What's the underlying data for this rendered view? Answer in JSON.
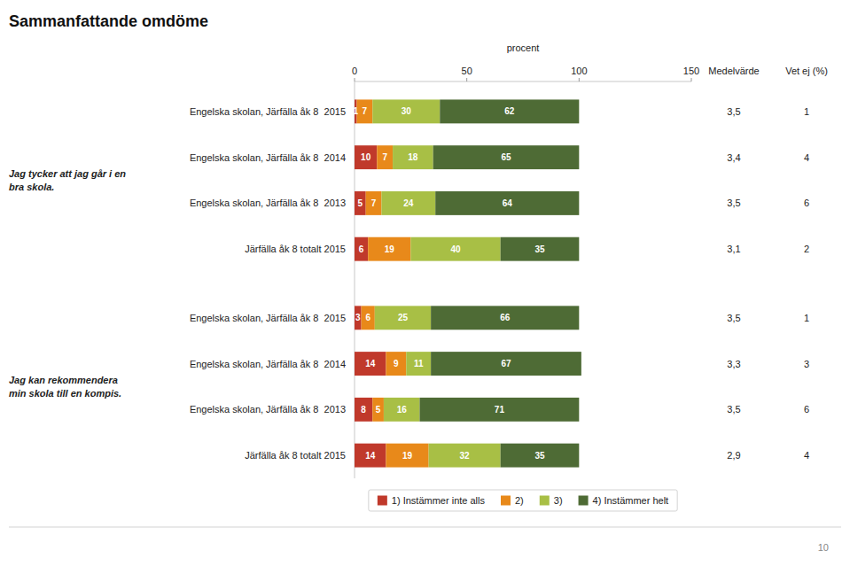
{
  "chart_data": {
    "type": "bar",
    "orientation": "horizontal",
    "stacked": true,
    "data_labels": true,
    "legend": "bottom",
    "title": "Sammanfattande omdöme",
    "x_label": "procent",
    "xlim": [
      0,
      150
    ],
    "xticks": [
      0,
      50,
      100,
      150
    ],
    "categories": [
      "Engelska skolan, Järfälla åk 8  2015",
      "Engelska skolan, Järfälla åk 8  2014",
      "Engelska skolan, Järfälla åk 8  2013",
      "Järfälla åk 8 totalt 2015",
      "Engelska skolan, Järfälla åk 8  2015",
      "Engelska skolan, Järfälla åk 8  2014",
      "Engelska skolan, Järfälla åk 8  2013",
      "Järfälla åk 8 totalt 2015"
    ],
    "groups": [
      {
        "name": "Jag tycker att jag går i en\nbra skola.",
        "count": 4
      },
      {
        "name": "Jag kan rekommendera\nmin skola till en kompis.",
        "count": 4
      }
    ],
    "series": [
      {
        "name": "1) Instämmer inte alls",
        "color": "#c0392b",
        "values": [
          1,
          10,
          5,
          6,
          3,
          14,
          8,
          14
        ]
      },
      {
        "name": "2)",
        "color": "#e8891a",
        "values": [
          7,
          7,
          7,
          19,
          6,
          9,
          5,
          19
        ]
      },
      {
        "name": "3)",
        "color": "#a8bf45",
        "values": [
          30,
          18,
          24,
          40,
          25,
          11,
          16,
          32
        ]
      },
      {
        "name": "4) Instämmer helt",
        "color": "#4e6b35",
        "values": [
          62,
          65,
          64,
          35,
          66,
          67,
          71,
          35
        ]
      }
    ],
    "columns": [
      {
        "name": "Medelvärde",
        "values": [
          3.5,
          3.4,
          3.5,
          3.1,
          3.5,
          3.3,
          3.5,
          2.9
        ],
        "value_labels": [
          "3,5",
          "3,4",
          "3,5",
          "3,1",
          "3,5",
          "3,3",
          "3,5",
          "2,9"
        ]
      },
      {
        "name": "Vet ej (%)",
        "values": [
          1,
          4,
          6,
          2,
          1,
          3,
          6,
          4
        ]
      }
    ],
    "footer": "10"
  }
}
